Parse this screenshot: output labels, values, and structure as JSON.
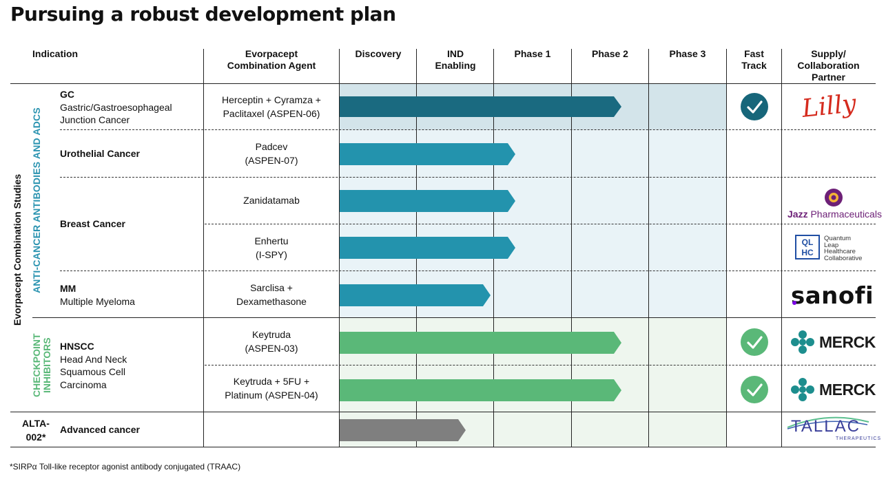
{
  "title": "Pursuing a robust development plan",
  "headers": {
    "indication": "Indication",
    "agent_line1": "Evorpacept",
    "agent_line2": "Combination  Agent",
    "discovery": "Discovery",
    "ind_line1": "IND",
    "ind_line2": "Enabling",
    "phase1": "Phase 1",
    "phase2": "Phase 2",
    "phase3": "Phase 3",
    "fast_line1": "Fast",
    "fast_line2": "Track",
    "partner_line1": "Supply/",
    "partner_line2": "Collaboration",
    "partner_line3": "Partner"
  },
  "side_labels": {
    "outer": "Evorpacept Combination Studies",
    "group1": "ANTI-CANCER ANTIBODIES AND ADCS",
    "group2_line1": "CHECKPOINT",
    "group2_line2": "INHIBITORS",
    "alta_line1": "ALTA-",
    "alta_line2": "002*"
  },
  "indications": {
    "gc_title": "GC",
    "gc_line1": "Gastric/Gastroesophageal",
    "gc_line2": "Junction Cancer",
    "urothelial": "Urothelial Cancer",
    "breast": "Breast Cancer",
    "mm_title": "MM",
    "mm_line1": "Multiple Myeloma",
    "hnscc_title": "HNSCC",
    "hnscc_line1": "Head And Neck",
    "hnscc_line2": "Squamous Cell",
    "hnscc_line3": "Carcinoma",
    "advanced": "Advanced cancer"
  },
  "rows": [
    {
      "agent_line1": "Herceptin + Cyramza +",
      "agent_line2": "Paclitaxel (ASPEN-06)",
      "stage": "Phase 2",
      "fast_track": true,
      "partner": "Lilly"
    },
    {
      "agent_line1": "Padcev",
      "agent_line2": "(ASPEN-07)",
      "stage": "Phase 1",
      "fast_track": false,
      "partner": ""
    },
    {
      "agent_line1": "Zanidatamab",
      "agent_line2": "",
      "stage": "Phase 1",
      "fast_track": false,
      "partner": "Jazz Pharmaceuticals"
    },
    {
      "agent_line1": "Enhertu",
      "agent_line2": "(I-SPY)",
      "stage": "Phase 1",
      "fast_track": false,
      "partner": "Quantum Leap Healthcare Collaborative"
    },
    {
      "agent_line1": "Sarclisa +",
      "agent_line2": "Dexamethasone",
      "stage": "Phase 1",
      "fast_track": false,
      "partner": "sanofi"
    },
    {
      "agent_line1": "Keytruda",
      "agent_line2": "(ASPEN-03)",
      "stage": "Phase 2",
      "fast_track": true,
      "partner": "MERCK"
    },
    {
      "agent_line1": "Keytruda + 5FU +",
      "agent_line2": "Platinum (ASPEN-04)",
      "stage": "Phase 2",
      "fast_track": true,
      "partner": "MERCK"
    },
    {
      "agent_line1": "",
      "agent_line2": "",
      "stage": "IND Enabling",
      "fast_track": false,
      "partner": "TALLAC"
    }
  ],
  "logos": {
    "lilly": "Lilly",
    "jazz_bold": "Jazz",
    "jazz_rest": " Pharmaceuticals",
    "qlhc_mark_1": "QL",
    "qlhc_mark_2": "HC",
    "qlhc_line1": "Quantum",
    "qlhc_line2": "Leap",
    "qlhc_line3": "Healthcare",
    "qlhc_line4": "Collaborative",
    "sanofi": "sanofi",
    "merck": "MERCK",
    "tallac": "TALLAC",
    "tallac_sub": "THERAPEUTICS"
  },
  "colors": {
    "bar_dark_teal": "#1a6a80",
    "bar_teal": "#2393ad",
    "bar_green": "#5ab878",
    "bar_gray": "#7f7f7f",
    "check_teal": "#17667a",
    "check_green": "#5ab878",
    "group1_text": "#2a93b0",
    "group2_text": "#5ab878",
    "lilly_red": "#d52b1e",
    "jazz_purple": "#6d2077",
    "merck_teal": "#1d8e8e"
  },
  "footnote": "*SIRPα Toll-like receptor agonist antibody conjugated (TRAAC)"
}
